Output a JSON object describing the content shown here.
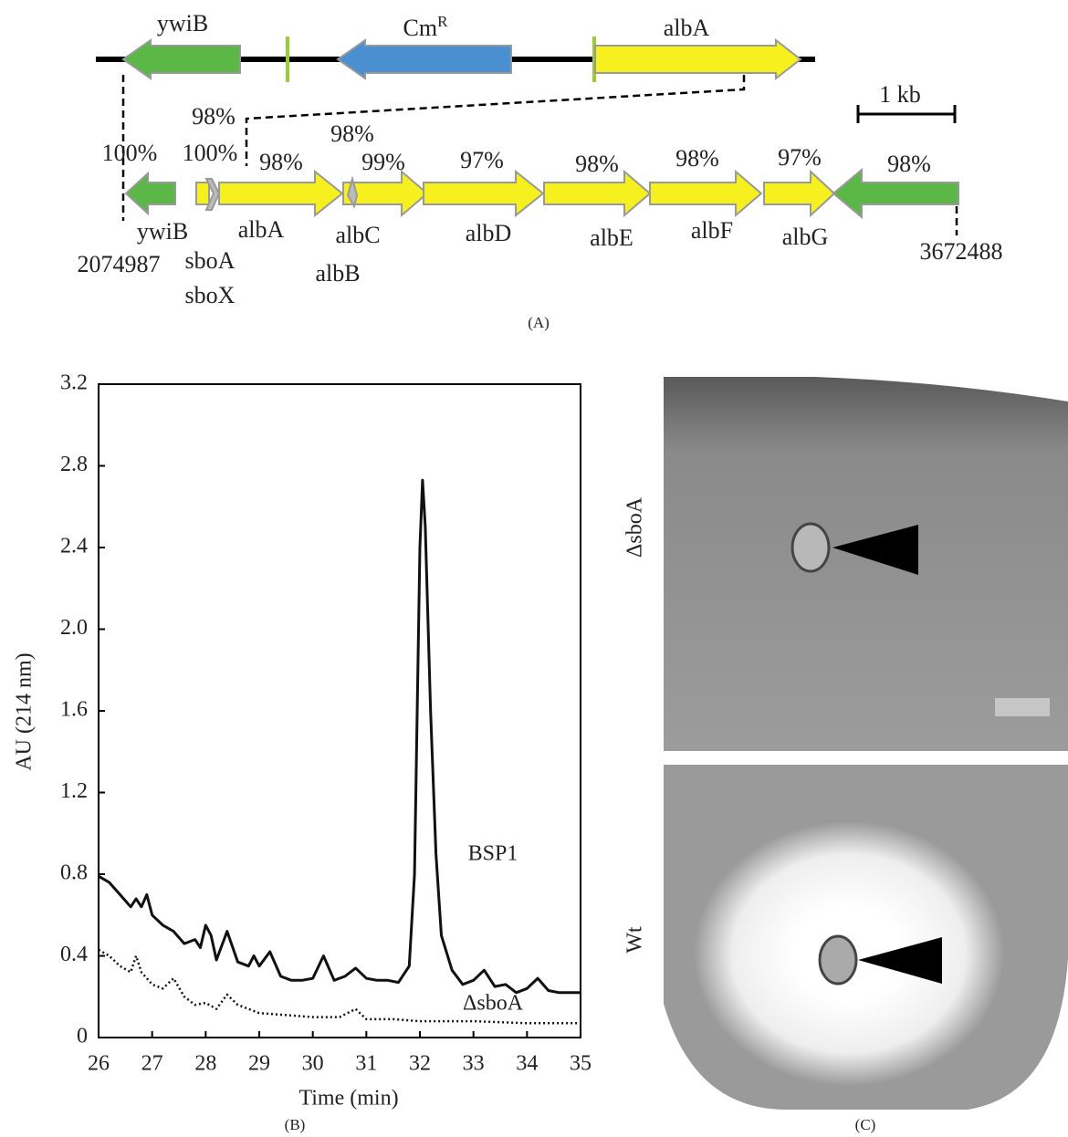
{
  "diagram": {
    "top_genes": [
      {
        "label": "ywiB"
      },
      {
        "label": "Cm",
        "superscript": "R"
      },
      {
        "label": "albA"
      }
    ],
    "identities": [
      "100%",
      "100%",
      "98%",
      "98%",
      "98%",
      "99%",
      "97%",
      "98%",
      "98%",
      "97%",
      "98%"
    ],
    "genes": [
      "ywiB",
      "sboA",
      "sboX",
      "albA",
      "albC",
      "albB",
      "albD",
      "albE",
      "albF",
      "albG"
    ],
    "start": "2074987",
    "end": "3672488",
    "scale": "1 kb",
    "panel": "(A)"
  },
  "chart_data": {
    "type": "line",
    "panel": "(B)",
    "x_label": "Time (min)",
    "y_label": "AU (214 nm)",
    "xlim": [
      26,
      35
    ],
    "xticks": [
      26,
      27,
      28,
      29,
      30,
      31,
      32,
      33,
      34,
      35
    ],
    "ylim": [
      0,
      3.2
    ],
    "yticks": [
      0,
      0.4,
      0.8,
      1.2,
      1.6,
      {
        "value": 2,
        "label": "2.0"
      },
      2.4,
      2.8,
      3.2
    ],
    "series": [
      {
        "name": "BSP1",
        "color": "#111",
        "dash": false,
        "x": [
          26.0,
          26.2,
          26.4,
          26.6,
          26.7,
          26.8,
          26.9,
          27.0,
          27.2,
          27.4,
          27.6,
          27.8,
          27.9,
          28.0,
          28.1,
          28.2,
          28.4,
          28.6,
          28.8,
          28.9,
          29.0,
          29.2,
          29.4,
          29.6,
          29.8,
          30.0,
          30.2,
          30.4,
          30.6,
          30.8,
          31.0,
          31.2,
          31.4,
          31.6,
          31.8,
          31.9,
          32.0,
          32.05,
          32.1,
          32.2,
          32.3,
          32.4,
          32.6,
          32.8,
          33.0,
          33.2,
          33.4,
          33.6,
          33.8,
          34.0,
          34.2,
          34.4,
          34.6,
          35.0
        ],
        "values": [
          0.79,
          0.76,
          0.7,
          0.64,
          0.68,
          0.64,
          0.7,
          0.6,
          0.55,
          0.52,
          0.46,
          0.48,
          0.44,
          0.55,
          0.5,
          0.38,
          0.52,
          0.37,
          0.35,
          0.4,
          0.35,
          0.42,
          0.3,
          0.28,
          0.28,
          0.29,
          0.4,
          0.28,
          0.3,
          0.34,
          0.29,
          0.28,
          0.28,
          0.27,
          0.35,
          0.8,
          2.4,
          2.73,
          2.5,
          1.6,
          0.9,
          0.5,
          0.33,
          0.26,
          0.28,
          0.33,
          0.25,
          0.26,
          0.22,
          0.24,
          0.29,
          0.23,
          0.22,
          0.22
        ]
      },
      {
        "name": "ΔsboA",
        "color": "#111",
        "dash": true,
        "x": [
          26.0,
          26.2,
          26.4,
          26.6,
          26.7,
          26.8,
          27.0,
          27.2,
          27.4,
          27.6,
          27.8,
          28.0,
          28.2,
          28.4,
          28.6,
          28.8,
          29.0,
          29.5,
          30.0,
          30.5,
          30.8,
          31.0,
          31.5,
          32.0,
          32.5,
          33.0,
          34.0,
          35.0
        ],
        "values": [
          0.43,
          0.4,
          0.35,
          0.32,
          0.4,
          0.32,
          0.26,
          0.24,
          0.29,
          0.2,
          0.16,
          0.17,
          0.14,
          0.21,
          0.16,
          0.14,
          0.12,
          0.11,
          0.1,
          0.1,
          0.14,
          0.09,
          0.09,
          0.08,
          0.08,
          0.08,
          0.07,
          0.07
        ]
      }
    ]
  },
  "photos": {
    "top": "ΔsboA",
    "bottom": "Wt",
    "panel": "(C)"
  }
}
